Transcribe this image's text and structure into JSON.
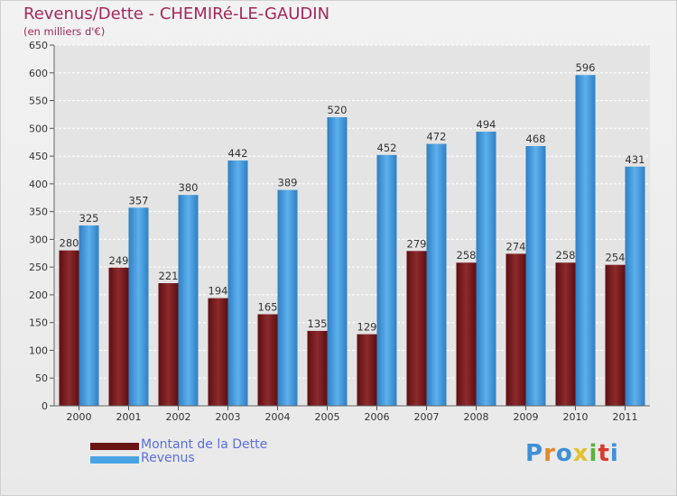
{
  "header": {
    "title": "Revenus/Dette - CHEMIRé-LE-GAUDIN",
    "subtitle": "(en milliers d'€)"
  },
  "legend": {
    "debt_label": "Montant de la Dette",
    "revenue_label": "Revenus"
  },
  "logo": {
    "text": "Proxiti"
  },
  "colors": {
    "debt": "#7a1e1e",
    "revenue": "#4aa3e3",
    "title": "#a3285a"
  },
  "chart_data": {
    "type": "bar",
    "title": "Revenus/Dette - CHEMIRé-LE-GAUDIN",
    "ylabel": "(en milliers d'€)",
    "xlabel": "",
    "ylim": [
      0,
      650
    ],
    "yticks": [
      0,
      50,
      100,
      150,
      200,
      250,
      300,
      350,
      400,
      450,
      500,
      550,
      600,
      650
    ],
    "grid": true,
    "categories": [
      "2000",
      "2001",
      "2002",
      "2003",
      "2004",
      "2005",
      "2006",
      "2007",
      "2008",
      "2009",
      "2010",
      "2011"
    ],
    "series": [
      {
        "name": "Montant de la Dette",
        "values": [
          280,
          249,
          221,
          194,
          165,
          135,
          129,
          279,
          258,
          274,
          258,
          254
        ]
      },
      {
        "name": "Revenus",
        "values": [
          325,
          357,
          380,
          442,
          389,
          520,
          452,
          472,
          494,
          468,
          596,
          431
        ]
      }
    ]
  }
}
